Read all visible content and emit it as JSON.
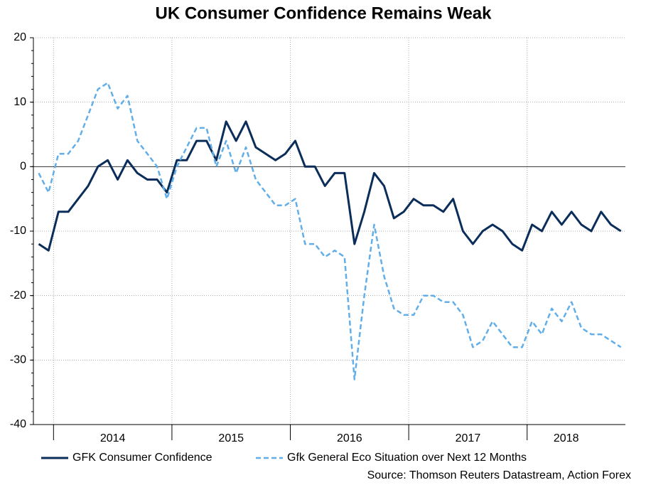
{
  "chart_data": {
    "type": "line",
    "title": "UK Consumer Confidence Remains Weak",
    "source": "Source: Thomson Reuters Datastream, Action Forex",
    "x": [
      2013.875,
      2013.958,
      2014.042,
      2014.125,
      2014.208,
      2014.292,
      2014.375,
      2014.458,
      2014.542,
      2014.625,
      2014.708,
      2014.792,
      2014.875,
      2014.958,
      2015.042,
      2015.125,
      2015.208,
      2015.292,
      2015.375,
      2015.458,
      2015.542,
      2015.625,
      2015.708,
      2015.792,
      2015.875,
      2015.958,
      2016.042,
      2016.125,
      2016.208,
      2016.292,
      2016.375,
      2016.458,
      2016.542,
      2016.625,
      2016.708,
      2016.792,
      2016.875,
      2016.958,
      2017.042,
      2017.125,
      2017.208,
      2017.292,
      2017.375,
      2017.458,
      2017.542,
      2017.625,
      2017.708,
      2017.792,
      2017.875,
      2017.958,
      2018.042,
      2018.125,
      2018.208,
      2018.292,
      2018.375,
      2018.458,
      2018.542,
      2018.625,
      2018.708,
      2018.792
    ],
    "series": [
      {
        "name": "GFK Consumer Confidence",
        "color": "#0b2d5a",
        "dash": false,
        "values": [
          -12,
          -13,
          -7,
          -7,
          -5,
          -3,
          0,
          1,
          -2,
          1,
          -1,
          -2,
          -2,
          -4,
          1,
          1,
          4,
          4,
          1,
          7,
          4,
          7,
          3,
          2,
          1,
          2,
          4,
          0,
          0,
          -3,
          -1,
          -1,
          -12,
          -7,
          -1,
          -3,
          -8,
          -7,
          -5,
          -6,
          -6,
          -7,
          -5,
          -10,
          -12,
          -10,
          -9,
          -10,
          -12,
          -13,
          -9,
          -10,
          -7,
          -9,
          -7,
          -9,
          -10,
          -7,
          -9,
          -10
        ]
      },
      {
        "name": "Gfk General Eco Situation over Next 12 Months",
        "color": "#62aee8",
        "dash": true,
        "values": [
          -1,
          -4,
          2,
          2,
          4,
          8,
          12,
          13,
          9,
          11,
          4,
          2,
          0,
          -5,
          0,
          3,
          6,
          6,
          0,
          4,
          -1,
          3,
          -2,
          -4,
          -6,
          -6,
          -5,
          -12,
          -12,
          -14,
          -13,
          -14,
          -33,
          -20,
          -9,
          -17,
          -22,
          -23,
          -23,
          -20,
          -20,
          -21,
          -21,
          -23,
          -28,
          -27,
          -24,
          -26,
          -28,
          -28,
          -24,
          -26,
          -22,
          -24,
          -21,
          -25,
          -26,
          -26,
          -27,
          -28
        ]
      }
    ],
    "xlim": [
      2013.83,
      2018.83
    ],
    "xticks": [
      {
        "value": 2014.5,
        "label": "2014"
      },
      {
        "value": 2015.5,
        "label": "2015"
      },
      {
        "value": 2016.5,
        "label": "2016"
      },
      {
        "value": 2017.5,
        "label": "2017"
      },
      {
        "value": 2018.33,
        "label": "2018"
      }
    ],
    "xgrid": [
      2014,
      2015,
      2016,
      2017,
      2018
    ],
    "ylim": [
      -40,
      20
    ],
    "yticks": [
      -40,
      -30,
      -20,
      -10,
      0,
      10,
      20
    ],
    "grid": true
  }
}
